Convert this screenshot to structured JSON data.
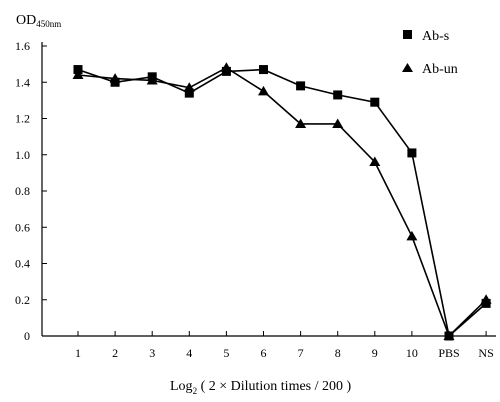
{
  "chart_data": {
    "type": "line",
    "xlabel_parts": {
      "prefix": "Log",
      "subscript": "2",
      "suffix": " ( 2 × Dilution times / 200 )"
    },
    "ylabel_parts": {
      "main": "OD",
      "subscript": "450nm"
    },
    "categories": [
      "1",
      "2",
      "3",
      "4",
      "5",
      "6",
      "7",
      "8",
      "9",
      "10",
      "PBS",
      "NS"
    ],
    "ylim": [
      0,
      1.6
    ],
    "yticks": [
      "0",
      "0.2",
      "0.4",
      "0.6",
      "0.8",
      "1.0",
      "1.2",
      "1.4",
      "1.6"
    ],
    "grid": false,
    "legend_position": "top-right",
    "series": [
      {
        "name": "Ab-s",
        "marker": "square",
        "color": "#000000",
        "values": [
          1.47,
          1.4,
          1.43,
          1.34,
          1.46,
          1.47,
          1.38,
          1.33,
          1.29,
          1.01,
          0.0,
          0.18
        ]
      },
      {
        "name": "Ab-un",
        "marker": "triangle",
        "color": "#000000",
        "values": [
          1.44,
          1.42,
          1.41,
          1.37,
          1.48,
          1.35,
          1.17,
          1.17,
          0.96,
          0.55,
          0.0,
          0.2
        ]
      }
    ]
  }
}
